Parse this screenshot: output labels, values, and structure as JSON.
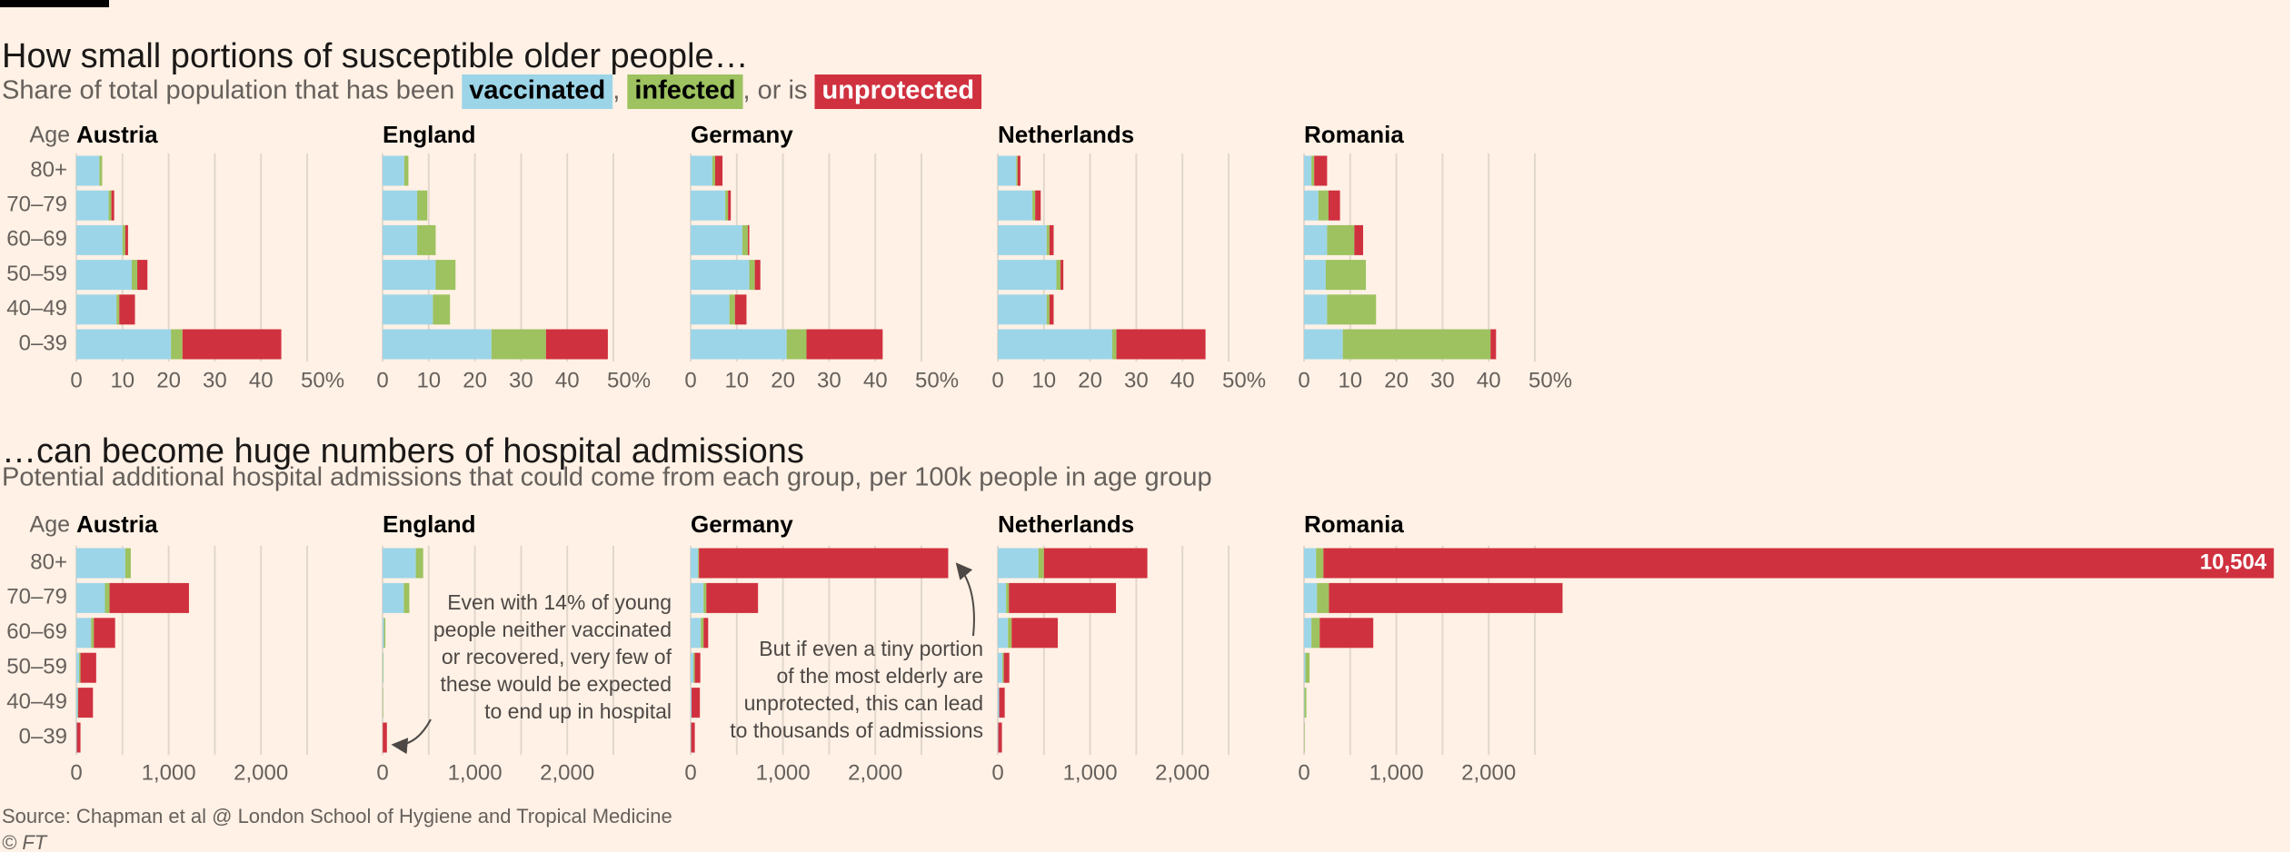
{
  "sections": [
    {
      "title": "How small portions of susceptible older people…",
      "subtitle": [
        "Share of total population that has been ",
        ", ",
        ", or is "
      ],
      "legend": [
        {
          "name": "vaccinated",
          "color": "#9dd5e8",
          "text_color": "#000000"
        },
        {
          "name": "infected",
          "color": "#9dc25f",
          "text_color": "#000000"
        },
        {
          "name": "unprotected",
          "color": "#d0313f",
          "text_color": "#ffffff"
        }
      ],
      "y_label": "Age",
      "categories": [
        "80+",
        "70–79",
        "60–69",
        "50–59",
        "40–49",
        "0–39"
      ],
      "chart_data": [
        {
          "type": "stacked_bar",
          "title": "Austria",
          "xlim": [
            0,
            50
          ],
          "xticks": [
            0,
            10,
            20,
            30,
            40,
            {
              "value": 50,
              "label": "50%"
            }
          ],
          "grid": true,
          "series": [
            {
              "values": [
                5,
                7,
                10,
                12,
                8.7,
                20.5
              ]
            },
            {
              "values": [
                0.6,
                0.6,
                0.6,
                1.2,
                0.6,
                2.5
              ]
            },
            {
              "values": [
                0,
                0.6,
                0.6,
                2.2,
                3.4,
                21.4
              ]
            }
          ]
        },
        {
          "type": "stacked_bar",
          "title": "England",
          "xlim": [
            0,
            50
          ],
          "xticks": [
            0,
            10,
            20,
            30,
            40,
            {
              "value": 50,
              "label": "50%"
            }
          ],
          "grid": true,
          "series": [
            {
              "values": [
                4.7,
                7.5,
                7.5,
                11.5,
                10.9,
                23.6
              ]
            },
            {
              "values": [
                0.9,
                2.2,
                4,
                4.3,
                3.7,
                11.8
              ]
            },
            {
              "values": [
                0,
                0,
                0,
                0,
                0,
                13.4
              ]
            }
          ]
        },
        {
          "type": "stacked_bar",
          "title": "Germany",
          "xlim": [
            0,
            50
          ],
          "xticks": [
            0,
            10,
            20,
            30,
            40,
            {
              "value": 50,
              "label": "50%"
            }
          ],
          "grid": true,
          "series": [
            {
              "values": [
                4.7,
                7.5,
                11.2,
                12.7,
                8.4,
                20.8
              ]
            },
            {
              "values": [
                0.6,
                0.6,
                1.2,
                1.2,
                1.2,
                4.3
              ]
            },
            {
              "values": [
                1.6,
                0.6,
                0.3,
                1.2,
                2.5,
                16.5
              ]
            }
          ]
        },
        {
          "type": "stacked_bar",
          "title": "Netherlands",
          "xlim": [
            0,
            50
          ],
          "xticks": [
            0,
            10,
            20,
            30,
            40,
            {
              "value": 50,
              "label": "50%"
            }
          ],
          "grid": true,
          "series": [
            {
              "values": [
                4,
                7.5,
                10.6,
                12.7,
                10.6,
                24.8
              ]
            },
            {
              "values": [
                0.3,
                0.6,
                0.6,
                0.9,
                0.6,
                0.9
              ]
            },
            {
              "values": [
                0.6,
                1.2,
                0.9,
                0.6,
                0.9,
                19.3
              ]
            }
          ]
        },
        {
          "type": "stacked_bar",
          "title": "Romania",
          "xlim": [
            0,
            50
          ],
          "xticks": [
            0,
            10,
            20,
            30,
            40,
            {
              "value": 50,
              "label": "50%"
            }
          ],
          "grid": true,
          "series": [
            {
              "values": [
                1.6,
                3.1,
                5,
                4.7,
                5,
                8.4
              ]
            },
            {
              "values": [
                0.6,
                2.2,
                5.9,
                8.7,
                10.6,
                32
              ]
            },
            {
              "values": [
                2.8,
                2.5,
                1.9,
                0,
                0,
                1.2
              ]
            }
          ]
        }
      ]
    },
    {
      "title": "…can become huge numbers of hospital admissions",
      "subtitle": "Potential additional hospital admissions that could come from each group, per 100k people in age group",
      "y_label": "Age",
      "categories": [
        "80+",
        "70–79",
        "60–69",
        "50–59",
        "40–49",
        "0–39"
      ],
      "chart_data": [
        {
          "type": "stacked_bar",
          "title": "Austria",
          "xlim": [
            0,
            2500
          ],
          "xticks": [
            0,
            {
              "value": 1000,
              "label": "1,000"
            },
            {
              "value": 2000,
              "label": "2,000"
            }
          ],
          "minor_xticks": [
            500,
            1500,
            2500
          ],
          "grid": true,
          "series": [
            {
              "values": [
                530,
                310,
                160,
                30,
                15,
                5
              ]
            },
            {
              "values": [
                60,
                50,
                30,
                15,
                5,
                0
              ]
            },
            {
              "values": [
                0,
                860,
                230,
                170,
                160,
                40
              ]
            }
          ]
        },
        {
          "type": "stacked_bar",
          "title": "England",
          "xlim": [
            0,
            2500
          ],
          "xticks": [
            0,
            {
              "value": 1000,
              "label": "1,000"
            },
            {
              "value": 2000,
              "label": "2,000"
            }
          ],
          "minor_xticks": [
            500,
            1500,
            2500
          ],
          "grid": true,
          "series": [
            {
              "values": [
                360,
                230,
                15,
                5,
                2,
                1
              ]
            },
            {
              "values": [
                80,
                60,
                15,
                5,
                5,
                1
              ]
            },
            {
              "values": [
                0,
                0,
                0,
                0,
                0,
                45
              ]
            }
          ],
          "annotation": [
            "Even with 14% of young",
            "people neither vaccinated",
            "or recovered, very few of",
            "these would be expected",
            "to end up in hospital"
          ]
        },
        {
          "type": "stacked_bar",
          "title": "Germany",
          "xlim": [
            0,
            2500
          ],
          "xticks": [
            0,
            {
              "value": 1000,
              "label": "1,000"
            },
            {
              "value": 2000,
              "label": "2,000"
            }
          ],
          "minor_xticks": [
            500,
            1500,
            2500
          ],
          "grid": true,
          "series": [
            {
              "values": [
                80,
                140,
                110,
                30,
                10,
                5
              ]
            },
            {
              "values": [
                10,
                30,
                30,
                15,
                0,
                0
              ]
            },
            {
              "values": [
                2700,
                560,
                50,
                60,
                90,
                40
              ]
            }
          ],
          "annotation": [
            "But if even a tiny portion",
            "of the most elderly are",
            "unprotected, this can lead",
            "to thousands of admissions"
          ]
        },
        {
          "type": "stacked_bar",
          "title": "Netherlands",
          "xlim": [
            0,
            2500
          ],
          "xticks": [
            0,
            {
              "value": 1000,
              "label": "1,000"
            },
            {
              "value": 2000,
              "label": "2,000"
            }
          ],
          "minor_xticks": [
            500,
            1500,
            2500
          ],
          "grid": true,
          "series": [
            {
              "values": [
                440,
                90,
                110,
                50,
                15,
                5
              ]
            },
            {
              "values": [
                60,
                30,
                40,
                15,
                0,
                0
              ]
            },
            {
              "values": [
                1120,
                1160,
                500,
                60,
                60,
                40
              ]
            }
          ]
        },
        {
          "type": "stacked_bar",
          "title": "Romania",
          "xlim": [
            0,
            2500
          ],
          "xticks": [
            0,
            {
              "value": 1000,
              "label": "1,000"
            },
            {
              "value": 2000,
              "label": "2,000"
            }
          ],
          "minor_xticks": [
            500,
            1500,
            2500
          ],
          "grid": true,
          "series": [
            {
              "values": [
                130,
                140,
                80,
                15,
                5,
                2
              ]
            },
            {
              "values": [
                80,
                130,
                90,
                45,
                20,
                5
              ]
            },
            {
              "values": [
                10294,
                2530,
                580,
                0,
                0,
                0
              ]
            }
          ],
          "totals": [
            {
              "category": "80+",
              "value": 10504,
              "label": "10,504"
            }
          ]
        }
      ]
    }
  ],
  "source": "Source: Chapman et al @ London School of Hygiene and Tropical Medicine",
  "copyright": "© FT"
}
